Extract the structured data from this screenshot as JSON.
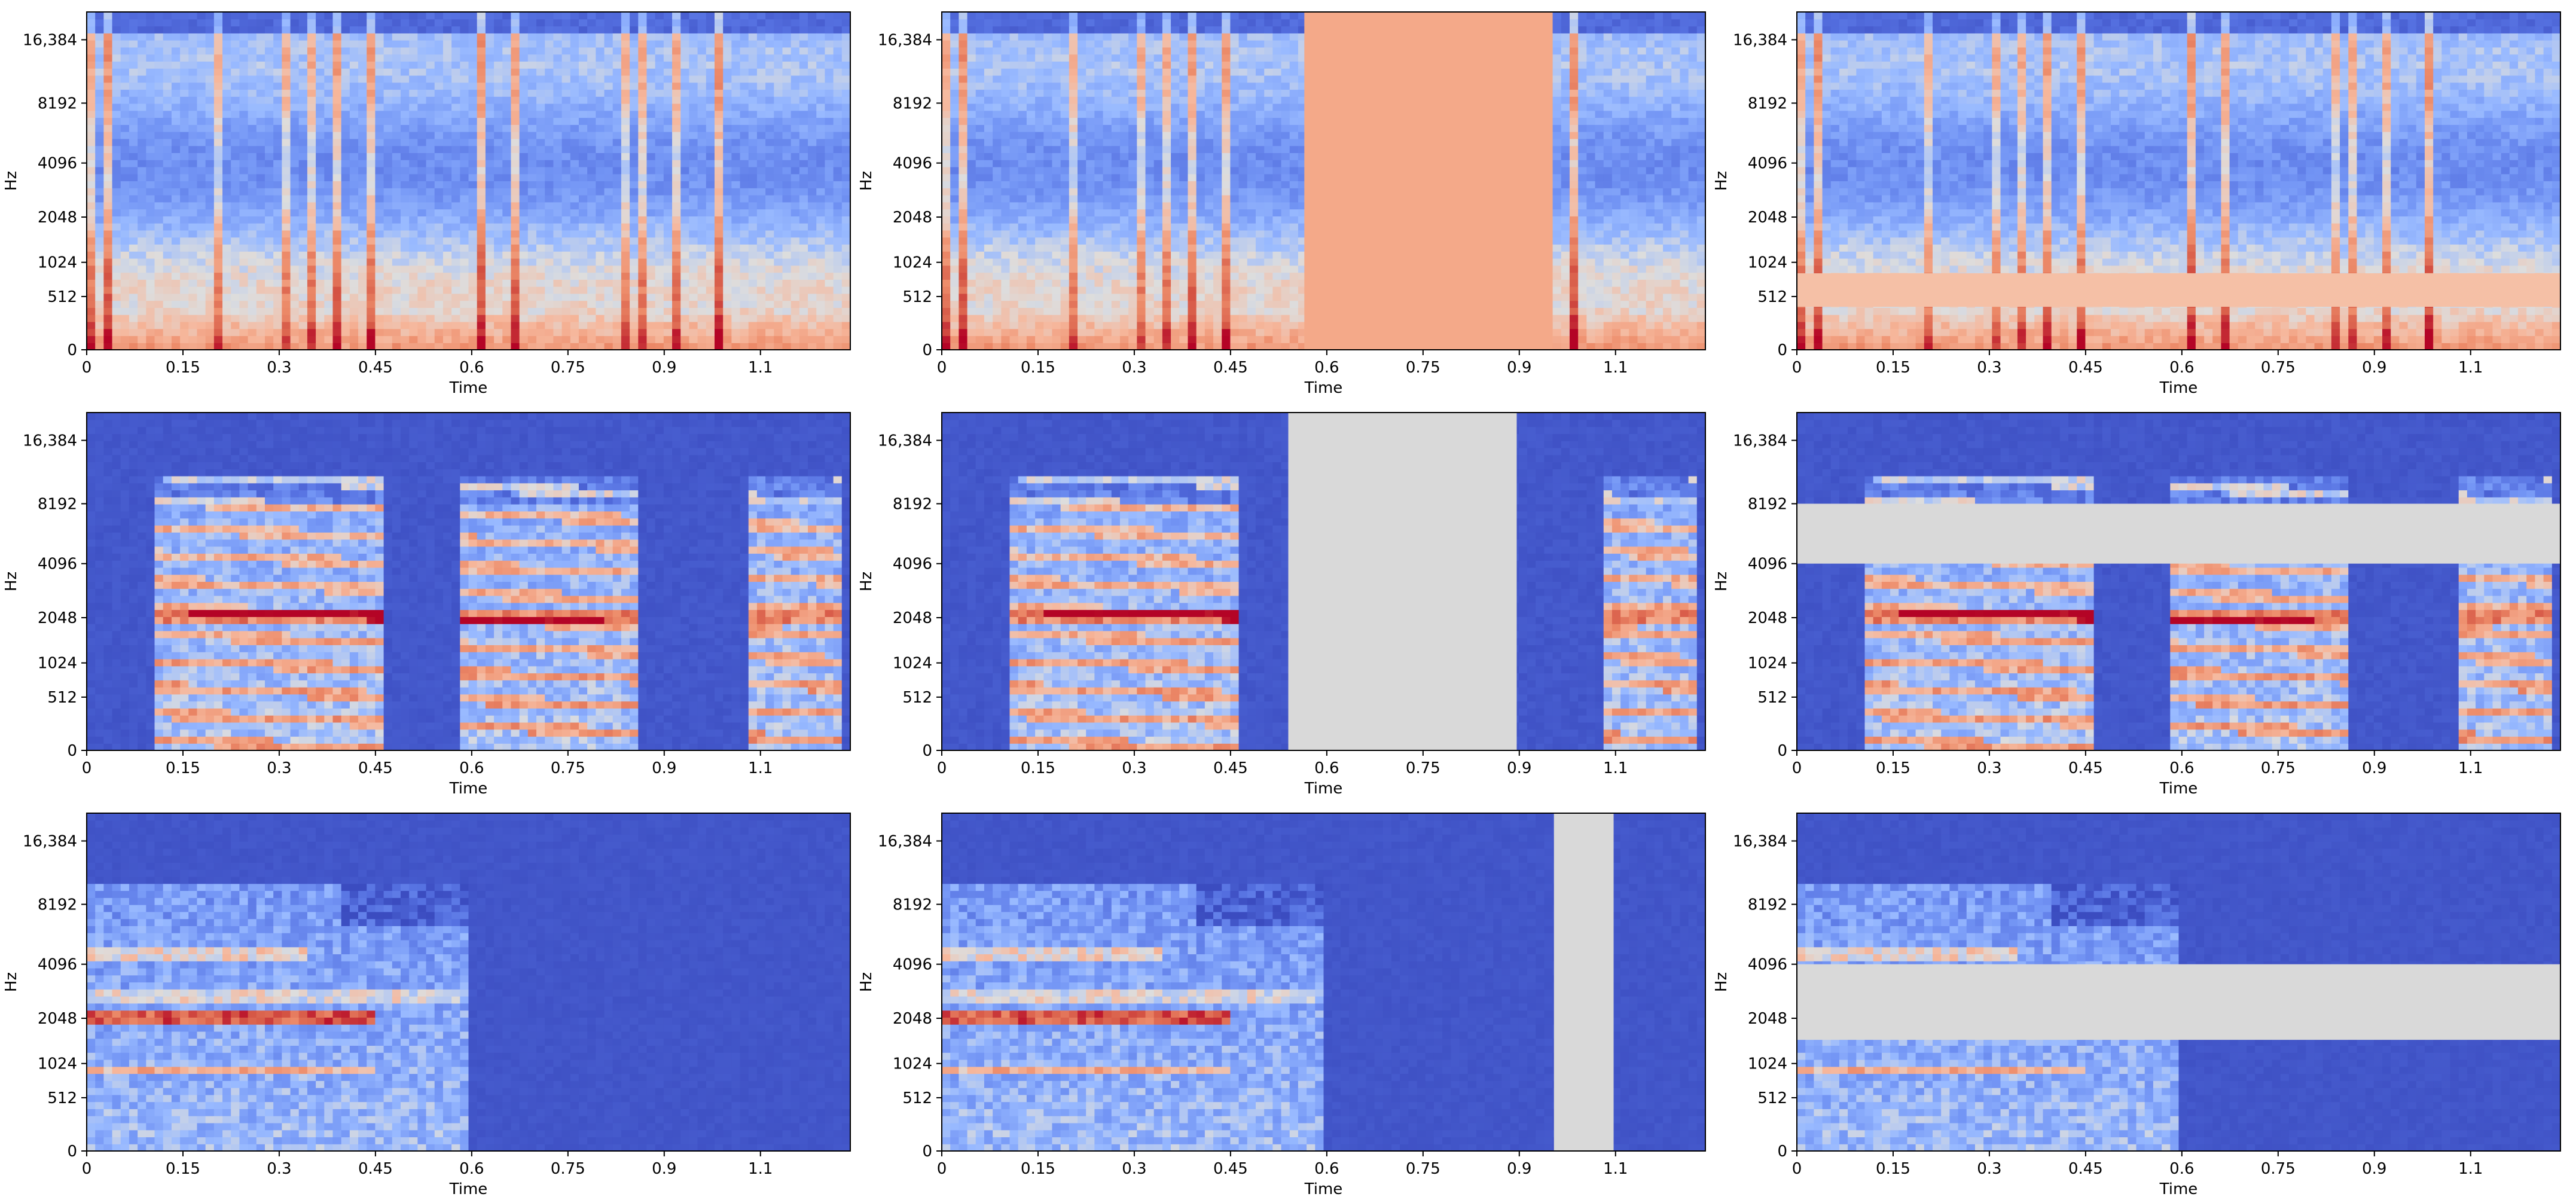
{
  "figure": {
    "rows": 3,
    "cols": 3,
    "description_title": ""
  },
  "colormap": {
    "name": "coolwarm",
    "low": "#3b4cc0",
    "mid": "#dddddd",
    "high": "#b40426"
  },
  "chart_data": [
    {
      "type": "heatmap",
      "subtype": "mel-spectrogram",
      "row": 0,
      "col": 0,
      "augmentation": "none",
      "xlabel": "Time",
      "ylabel": "Hz",
      "xlim": [
        0,
        1.19
      ],
      "ylim_scale": "mel",
      "xticks": [
        "0",
        "0.15",
        "0.3",
        "0.45",
        "0.6",
        "0.75",
        "0.9",
        "1.1"
      ],
      "xtick_values": [
        0,
        0.15,
        0.3,
        0.45,
        0.6,
        0.75,
        0.9,
        1.05
      ],
      "yticks": [
        "0",
        "512",
        "1024",
        "2048",
        "4096",
        "8192",
        "16,384"
      ],
      "ytick_values": [
        0,
        512,
        1024,
        2048,
        4096,
        8192,
        16384
      ],
      "signal": "noise",
      "mask": null
    },
    {
      "type": "heatmap",
      "subtype": "mel-spectrogram",
      "row": 0,
      "col": 1,
      "augmentation": "time-mask",
      "xlabel": "Time",
      "ylabel": "Hz",
      "xlim": [
        0,
        1.19
      ],
      "ylim_scale": "mel",
      "xticks": [
        "0",
        "0.15",
        "0.3",
        "0.45",
        "0.6",
        "0.75",
        "0.9",
        "1.1"
      ],
      "xtick_values": [
        0,
        0.15,
        0.3,
        0.45,
        0.6,
        0.75,
        0.9,
        1.05
      ],
      "yticks": [
        "0",
        "512",
        "1024",
        "2048",
        "4096",
        "8192",
        "16,384"
      ],
      "ytick_values": [
        0,
        512,
        1024,
        2048,
        4096,
        8192,
        16384
      ],
      "signal": "noise",
      "mask": {
        "kind": "time",
        "t0": 0.565,
        "t1": 0.952,
        "color": "#f4a989"
      }
    },
    {
      "type": "heatmap",
      "subtype": "mel-spectrogram",
      "row": 0,
      "col": 2,
      "augmentation": "frequency-mask",
      "xlabel": "Time",
      "ylabel": "Hz",
      "xlim": [
        0,
        1.19
      ],
      "ylim_scale": "mel",
      "xticks": [
        "0",
        "0.15",
        "0.3",
        "0.45",
        "0.6",
        "0.75",
        "0.9",
        "1.1"
      ],
      "xtick_values": [
        0,
        0.15,
        0.3,
        0.45,
        0.6,
        0.75,
        0.9,
        1.05
      ],
      "yticks": [
        "0",
        "512",
        "1024",
        "2048",
        "4096",
        "8192",
        "16,384"
      ],
      "ytick_values": [
        0,
        512,
        1024,
        2048,
        4096,
        8192,
        16384
      ],
      "signal": "noise",
      "mask": {
        "kind": "freq",
        "f0": 390,
        "f1": 840,
        "color": "#f5c0a6"
      }
    },
    {
      "type": "heatmap",
      "subtype": "mel-spectrogram",
      "row": 1,
      "col": 0,
      "augmentation": "none",
      "xlabel": "Time",
      "ylabel": "Hz",
      "xlim": [
        0,
        1.19
      ],
      "ylim_scale": "mel",
      "xticks": [
        "0",
        "0.15",
        "0.3",
        "0.45",
        "0.6",
        "0.75",
        "0.9",
        "1.1"
      ],
      "xtick_values": [
        0,
        0.15,
        0.3,
        0.45,
        0.6,
        0.75,
        0.9,
        1.05
      ],
      "yticks": [
        "0",
        "512",
        "1024",
        "2048",
        "4096",
        "8192",
        "16,384"
      ],
      "ytick_values": [
        0,
        512,
        1024,
        2048,
        4096,
        8192,
        16384
      ],
      "signal": "speech",
      "mask": null
    },
    {
      "type": "heatmap",
      "subtype": "mel-spectrogram",
      "row": 1,
      "col": 1,
      "augmentation": "time-mask",
      "xlabel": "Time",
      "ylabel": "Hz",
      "xlim": [
        0,
        1.19
      ],
      "ylim_scale": "mel",
      "xticks": [
        "0",
        "0.15",
        "0.3",
        "0.45",
        "0.6",
        "0.75",
        "0.9",
        "1.1"
      ],
      "xtick_values": [
        0,
        0.15,
        0.3,
        0.45,
        0.6,
        0.75,
        0.9,
        1.05
      ],
      "yticks": [
        "0",
        "512",
        "1024",
        "2048",
        "4096",
        "8192",
        "16,384"
      ],
      "ytick_values": [
        0,
        512,
        1024,
        2048,
        4096,
        8192,
        16384
      ],
      "signal": "speech",
      "mask": {
        "kind": "time",
        "t0": 0.54,
        "t1": 0.896,
        "color": "#d9d9d9"
      }
    },
    {
      "type": "heatmap",
      "subtype": "mel-spectrogram",
      "row": 1,
      "col": 2,
      "augmentation": "frequency-mask",
      "xlabel": "Time",
      "ylabel": "Hz",
      "xlim": [
        0,
        1.19
      ],
      "ylim_scale": "mel",
      "xticks": [
        "0",
        "0.15",
        "0.3",
        "0.45",
        "0.6",
        "0.75",
        "0.9",
        "1.1"
      ],
      "xtick_values": [
        0,
        0.15,
        0.3,
        0.45,
        0.6,
        0.75,
        0.9,
        1.05
      ],
      "yticks": [
        "0",
        "512",
        "1024",
        "2048",
        "4096",
        "8192",
        "16,384"
      ],
      "ytick_values": [
        0,
        512,
        1024,
        2048,
        4096,
        8192,
        16384
      ],
      "signal": "speech",
      "mask": {
        "kind": "freq",
        "f0": 4096,
        "f1": 8192,
        "color": "#d9d9d9"
      }
    },
    {
      "type": "heatmap",
      "subtype": "mel-spectrogram",
      "row": 2,
      "col": 0,
      "augmentation": "none",
      "xlabel": "Time",
      "ylabel": "Hz",
      "xlim": [
        0,
        1.19
      ],
      "ylim_scale": "mel",
      "xticks": [
        "0",
        "0.15",
        "0.3",
        "0.45",
        "0.6",
        "0.75",
        "0.9",
        "1.1"
      ],
      "xtick_values": [
        0,
        0.15,
        0.3,
        0.45,
        0.6,
        0.75,
        0.9,
        1.05
      ],
      "yticks": [
        "0",
        "512",
        "1024",
        "2048",
        "4096",
        "8192",
        "16,384"
      ],
      "ytick_values": [
        0,
        512,
        1024,
        2048,
        4096,
        8192,
        16384
      ],
      "signal": "tone",
      "signal_end": 0.59,
      "mask": null
    },
    {
      "type": "heatmap",
      "subtype": "mel-spectrogram",
      "row": 2,
      "col": 1,
      "augmentation": "time-mask",
      "xlabel": "Time",
      "ylabel": "Hz",
      "xlim": [
        0,
        1.19
      ],
      "ylim_scale": "mel",
      "xticks": [
        "0",
        "0.15",
        "0.3",
        "0.45",
        "0.6",
        "0.75",
        "0.9",
        "1.1"
      ],
      "xtick_values": [
        0,
        0.15,
        0.3,
        0.45,
        0.6,
        0.75,
        0.9,
        1.05
      ],
      "yticks": [
        "0",
        "512",
        "1024",
        "2048",
        "4096",
        "8192",
        "16,384"
      ],
      "ytick_values": [
        0,
        512,
        1024,
        2048,
        4096,
        8192,
        16384
      ],
      "signal": "tone",
      "signal_end": 0.59,
      "mask": {
        "kind": "time",
        "t0": 0.954,
        "t1": 1.047,
        "color": "#d9d9d9"
      }
    },
    {
      "type": "heatmap",
      "subtype": "mel-spectrogram",
      "row": 2,
      "col": 2,
      "augmentation": "frequency-mask",
      "xlabel": "Time",
      "ylabel": "Hz",
      "xlim": [
        0,
        1.19
      ],
      "ylim_scale": "mel",
      "xticks": [
        "0",
        "0.15",
        "0.3",
        "0.45",
        "0.6",
        "0.75",
        "0.9",
        "1.1"
      ],
      "xtick_values": [
        0,
        0.15,
        0.3,
        0.45,
        0.6,
        0.75,
        0.9,
        1.05
      ],
      "yticks": [
        "0",
        "512",
        "1024",
        "2048",
        "4096",
        "8192",
        "16,384"
      ],
      "ytick_values": [
        0,
        512,
        1024,
        2048,
        4096,
        8192,
        16384
      ],
      "signal": "tone",
      "signal_end": 0.59,
      "mask": {
        "kind": "freq",
        "f0": 1500,
        "f1": 4096,
        "color": "#d9d9d9"
      }
    }
  ]
}
